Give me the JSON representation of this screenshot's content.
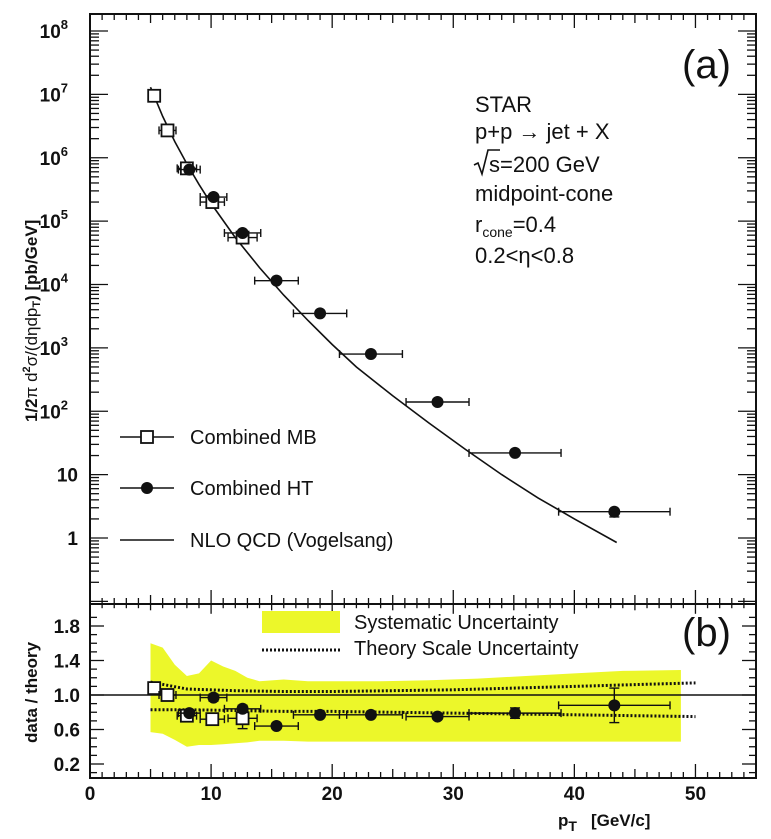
{
  "chart_data": [
    {
      "panel": "(a)",
      "type": "scatter",
      "ylabel": "1/2π d²σ/(dηdpT) [pb/GeV]",
      "yscale": "log",
      "xlim": [
        0,
        55
      ],
      "ylim": [
        0.1,
        100000000
      ],
      "y_ticks": [
        {
          "label": "1",
          "value": 1
        },
        {
          "label": "10",
          "value": 10
        },
        {
          "label": "10",
          "exp": "2",
          "value": 100
        },
        {
          "label": "10",
          "exp": "3",
          "value": 1000
        },
        {
          "label": "10",
          "exp": "4",
          "value": 10000
        },
        {
          "label": "10",
          "exp": "5",
          "value": 100000
        },
        {
          "label": "10",
          "exp": "6",
          "value": 1000000
        },
        {
          "label": "10",
          "exp": "7",
          "value": 10000000
        },
        {
          "label": "10",
          "exp": "8",
          "value": 100000000
        }
      ],
      "annotation": [
        "STAR",
        "p+p → jet + X",
        "√s=200 GeV",
        "midpoint-cone",
        "r_cone=0.4",
        "0.2<η<0.8"
      ],
      "annotation_cone": {
        "r": "r",
        "sub": "cone",
        "rest": "=0.4"
      },
      "annotation_sqrt": {
        "rest": "s=200  GeV"
      },
      "series": [
        {
          "name": "Combined MB",
          "marker": "open-square",
          "points": [
            {
              "x": 5.3,
              "y": 9500000,
              "xerr": 0.3
            },
            {
              "x": 6.4,
              "y": 2700000,
              "xerr": 0.7
            },
            {
              "x": 8.0,
              "y": 680000,
              "xerr": 0.8
            },
            {
              "x": 10.1,
              "y": 200000,
              "xerr": 1.0
            },
            {
              "x": 12.6,
              "y": 55000,
              "xerr": 1.2
            }
          ]
        },
        {
          "name": "Combined HT",
          "marker": "filled-circle",
          "points": [
            {
              "x": 8.2,
              "y": 650000,
              "xerr": 0.9
            },
            {
              "x": 10.2,
              "y": 240000,
              "xerr": 1.1
            },
            {
              "x": 12.6,
              "y": 65000,
              "xerr": 1.5
            },
            {
              "x": 15.4,
              "y": 11500,
              "xerr": 1.8
            },
            {
              "x": 19.0,
              "y": 3500,
              "xerr": 2.2
            },
            {
              "x": 23.2,
              "y": 800,
              "xerr": 2.6
            },
            {
              "x": 28.7,
              "y": 140,
              "xerr": 2.6
            },
            {
              "x": 35.1,
              "y": 22,
              "xerr": 3.8
            },
            {
              "x": 43.3,
              "y": 2.6,
              "xerr": 4.6,
              "yerr_low": 0.45
            }
          ]
        },
        {
          "name": "NLO QCD (Vogelsang)",
          "type": "line",
          "x": [
            5.0,
            6.0,
            7.0,
            8.0,
            9.0,
            10.0,
            12.0,
            14.0,
            16.0,
            18.0,
            20.0,
            22.0,
            25.0,
            28.0,
            31.0,
            34.0,
            37.0,
            40.0,
            43.5
          ],
          "y": [
            13000000,
            4500000,
            1800000,
            800000,
            380000,
            190000,
            55000,
            18500,
            6800,
            2700,
            1130,
            500,
            175,
            65,
            25,
            10,
            4.3,
            2.0,
            0.85
          ]
        }
      ]
    },
    {
      "panel": "(b)",
      "type": "scatter",
      "xlabel": "p_T  [GeV/c]",
      "ylabel": "data / theory",
      "xlim": [
        0,
        55
      ],
      "ylim": [
        0,
        2.0
      ],
      "x_ticks": [
        0,
        10,
        20,
        30,
        40,
        50
      ],
      "y_ticks": [
        "0.2",
        "0.6",
        "1.0",
        "1.4",
        "1.8"
      ],
      "reference_line": 1.0,
      "systematic_band": {
        "name": "Systematic Uncertainty",
        "color": "#ecf72a",
        "x": [
          5.0,
          6.0,
          7.0,
          8.0,
          9.0,
          10.0,
          11.0,
          12.0,
          13.0,
          14.0,
          16.0,
          18.0,
          20.0,
          24.0,
          28.0,
          32.0,
          36.0,
          40.0,
          44.0,
          48.8
        ],
        "upper": [
          1.6,
          1.55,
          1.35,
          1.22,
          1.25,
          1.4,
          1.33,
          1.28,
          1.2,
          1.16,
          1.18,
          1.16,
          1.16,
          1.16,
          1.17,
          1.19,
          1.22,
          1.25,
          1.28,
          1.29
        ],
        "lower": [
          0.57,
          0.55,
          0.48,
          0.4,
          0.42,
          0.42,
          0.43,
          0.44,
          0.45,
          0.47,
          0.47,
          0.46,
          0.46,
          0.46,
          0.46,
          0.46,
          0.46,
          0.46,
          0.46,
          0.46
        ]
      },
      "scale_band": {
        "name": "Theory Scale Uncertainty",
        "x": [
          5.0,
          8.0,
          12.0,
          16.0,
          20.0,
          25.0,
          30.0,
          35.0,
          40.0,
          45.0,
          50.0
        ],
        "upper": [
          1.15,
          1.07,
          1.05,
          1.04,
          1.04,
          1.05,
          1.06,
          1.08,
          1.1,
          1.12,
          1.14
        ],
        "lower": [
          0.83,
          0.83,
          0.82,
          0.81,
          0.81,
          0.8,
          0.79,
          0.78,
          0.77,
          0.76,
          0.75
        ]
      },
      "series": [
        {
          "name": "Combined MB",
          "marker": "open-square",
          "points": [
            {
              "x": 5.3,
              "y": 1.08,
              "xerr": 0.3,
              "yerr": 0.03
            },
            {
              "x": 6.4,
              "y": 1.0,
              "xerr": 0.7,
              "yerr": 0.03
            },
            {
              "x": 8.0,
              "y": 0.76,
              "xerr": 0.8,
              "yerr": 0.04
            },
            {
              "x": 10.1,
              "y": 0.72,
              "xerr": 1.0,
              "yerr": 0.06
            },
            {
              "x": 12.6,
              "y": 0.73,
              "xerr": 1.2,
              "yerr": 0.12
            }
          ]
        },
        {
          "name": "Combined HT",
          "marker": "filled-circle",
          "points": [
            {
              "x": 8.2,
              "y": 0.79,
              "xerr": 0.9,
              "yerr": 0.03
            },
            {
              "x": 10.2,
              "y": 0.97,
              "xerr": 1.1,
              "yerr": 0.04
            },
            {
              "x": 12.6,
              "y": 0.84,
              "xerr": 1.5,
              "yerr": 0.04
            },
            {
              "x": 15.4,
              "y": 0.64,
              "xerr": 1.8,
              "yerr": 0.02
            },
            {
              "x": 19.0,
              "y": 0.77,
              "xerr": 2.2,
              "yerr": 0.02
            },
            {
              "x": 23.2,
              "y": 0.77,
              "xerr": 2.6,
              "yerr": 0.02
            },
            {
              "x": 28.7,
              "y": 0.75,
              "xerr": 2.6,
              "yerr": 0.02
            },
            {
              "x": 35.1,
              "y": 0.79,
              "xerr": 3.8,
              "yerr": 0.06
            },
            {
              "x": 43.3,
              "y": 0.88,
              "xerr": 4.6,
              "yerr": 0.2
            }
          ]
        }
      ]
    }
  ],
  "labels": {
    "panel_a": "(a)",
    "panel_b": "(b)",
    "ylabel_a": "1/2π d²σ/(dηdpT) [pb/GeV]",
    "ylabel_a_parts": {
      "pre": "1/2",
      "pi": "π",
      "d": " d",
      "two": "2",
      "rest": "σ/(dηdp",
      "T": "T",
      "end": ") [pb/GeV]"
    },
    "ylabel_b": "data / theory",
    "xlabel": {
      "p": "p",
      "sub": "T",
      "rest": "[GeV/c]"
    }
  }
}
